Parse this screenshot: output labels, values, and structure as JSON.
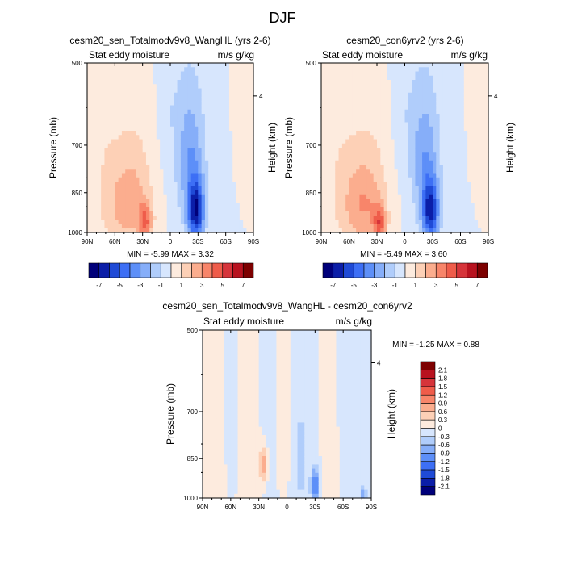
{
  "figure": {
    "title": "DJF"
  },
  "colors": {
    "diverging": [
      "#00007a",
      "#0b1ea8",
      "#1f4ad6",
      "#3d6ff5",
      "#5d8ff8",
      "#86aef9",
      "#b0cdfb",
      "#d7e6fd",
      "#fdebde",
      "#fdd0b6",
      "#fbad8e",
      "#f8856a",
      "#ef5c4a",
      "#d6343a",
      "#b8121f",
      "#7d0000"
    ]
  },
  "chart_data": [
    {
      "type": "heatmap",
      "title": "cesm20_sen_Totalmodv9v8_WangHL (yrs 2-6)",
      "left_subtitle": "Stat eddy moisture",
      "right_subtitle": "m/s g/kg",
      "ylabel": "Pressure (mb)",
      "y2label": "Height (km)",
      "y2_ticks": [
        "4"
      ],
      "x_ticks": [
        "90N",
        "60N",
        "30N",
        "0",
        "30S",
        "60S",
        "90S"
      ],
      "y_ticks": [
        "500",
        "700",
        "850",
        "1000"
      ],
      "stats": "MIN =  -5.99  MAX =   3.32",
      "colorbar_ticks": [
        "-7",
        "-5",
        "-3",
        "-1",
        "1",
        "3",
        "5",
        "7"
      ],
      "scale_min": -8,
      "scale_max": 8,
      "features": [
        {
          "lat": -28,
          "p": 920,
          "value": -5.99,
          "sx": 6,
          "sp": 80
        },
        {
          "lat": -22,
          "p": 780,
          "value": -2.5,
          "sx": 10,
          "sp": 140
        },
        {
          "lat": -15,
          "p": 620,
          "value": -0.9,
          "sx": 18,
          "sp": 160
        },
        {
          "lat": 45,
          "p": 900,
          "value": 2.6,
          "sx": 16,
          "sp": 110
        },
        {
          "lat": 27,
          "p": 960,
          "value": 3.32,
          "sx": 5,
          "sp": 50
        },
        {
          "lat": 40,
          "p": 700,
          "value": 0.8,
          "sx": 20,
          "sp": 150
        },
        {
          "lat": 75,
          "p": 700,
          "value": 0.6,
          "sx": 12,
          "sp": 300
        },
        {
          "lat": -55,
          "p": 700,
          "value": -0.4,
          "sx": 10,
          "sp": 250
        },
        {
          "lat": -72,
          "p": 600,
          "value": 0.4,
          "sx": 7,
          "sp": 150
        },
        {
          "lat": 5,
          "p": 560,
          "value": -0.5,
          "sx": 6,
          "sp": 120
        }
      ]
    },
    {
      "type": "heatmap",
      "title": "cesm20_con6yrv2 (yrs 2-6)",
      "left_subtitle": "Stat eddy moisture",
      "right_subtitle": "m/s g/kg",
      "ylabel": "Pressure (mb)",
      "y2label": "Height (km)",
      "y2_ticks": [
        "4"
      ],
      "x_ticks": [
        "90N",
        "60N",
        "30N",
        "0",
        "30S",
        "60S",
        "90S"
      ],
      "y_ticks": [
        "500",
        "700",
        "850",
        "1000"
      ],
      "stats": "MIN =  -5.49  MAX =   3.60",
      "colorbar_ticks": [
        "-7",
        "-5",
        "-3",
        "-1",
        "1",
        "3",
        "5",
        "7"
      ],
      "scale_min": -8,
      "scale_max": 8,
      "features": [
        {
          "lat": -28,
          "p": 920,
          "value": -5.49,
          "sx": 6,
          "sp": 80
        },
        {
          "lat": -22,
          "p": 780,
          "value": -2.4,
          "sx": 10,
          "sp": 140
        },
        {
          "lat": -15,
          "p": 620,
          "value": -0.9,
          "sx": 18,
          "sp": 160
        },
        {
          "lat": 45,
          "p": 900,
          "value": 2.8,
          "sx": 16,
          "sp": 110
        },
        {
          "lat": 27,
          "p": 960,
          "value": 3.6,
          "sx": 5,
          "sp": 50
        },
        {
          "lat": 40,
          "p": 700,
          "value": 0.8,
          "sx": 20,
          "sp": 150
        },
        {
          "lat": 75,
          "p": 700,
          "value": 0.6,
          "sx": 12,
          "sp": 300
        },
        {
          "lat": -55,
          "p": 700,
          "value": -0.4,
          "sx": 10,
          "sp": 250
        },
        {
          "lat": -72,
          "p": 600,
          "value": 0.4,
          "sx": 7,
          "sp": 150
        },
        {
          "lat": 5,
          "p": 560,
          "value": -0.5,
          "sx": 6,
          "sp": 120
        }
      ]
    },
    {
      "type": "heatmap",
      "title": "cesm20_sen_Totalmodv9v8_WangHL - cesm20_con6yrv2",
      "left_subtitle": "Stat eddy moisture",
      "right_subtitle": "m/s g/kg",
      "ylabel": "Pressure (mb)",
      "y2label": "Height (km)",
      "y2_ticks": [
        "4"
      ],
      "x_ticks": [
        "90N",
        "60N",
        "30N",
        "0",
        "30S",
        "60S",
        "90S"
      ],
      "y_ticks": [
        "500",
        "700",
        "850",
        "1000"
      ],
      "stats": "MIN =  -1.25  MAX =   0.88",
      "colorbar_ticks": [
        "2.1",
        "1.8",
        "1.5",
        "1.2",
        "0.9",
        "0.6",
        "0.3",
        "0",
        "-0.3",
        "-0.6",
        "-0.9",
        "-1.2",
        "-1.5",
        "-1.8",
        "-2.1"
      ],
      "scale_min": -2.4,
      "scale_max": 2.4,
      "features": [
        {
          "lat": 75,
          "p": 750,
          "value": 0.25,
          "sx": 6,
          "sp": 400
        },
        {
          "lat": 45,
          "p": 700,
          "value": 0.2,
          "sx": 6,
          "sp": 350
        },
        {
          "lat": 25,
          "p": 870,
          "value": 0.88,
          "sx": 3,
          "sp": 40
        },
        {
          "lat": 5,
          "p": 700,
          "value": 0.2,
          "sx": 5,
          "sp": 300
        },
        {
          "lat": -45,
          "p": 650,
          "value": 0.2,
          "sx": 5,
          "sp": 250
        },
        {
          "lat": 60,
          "p": 650,
          "value": -0.2,
          "sx": 5,
          "sp": 250
        },
        {
          "lat": 15,
          "p": 800,
          "value": -0.2,
          "sx": 5,
          "sp": 300
        },
        {
          "lat": -15,
          "p": 850,
          "value": -0.35,
          "sx": 7,
          "sp": 250
        },
        {
          "lat": -30,
          "p": 950,
          "value": -1.25,
          "sx": 3,
          "sp": 50
        },
        {
          "lat": -65,
          "p": 600,
          "value": -0.2,
          "sx": 6,
          "sp": 200
        },
        {
          "lat": -82,
          "p": 980,
          "value": -0.9,
          "sx": 2,
          "sp": 25
        }
      ]
    }
  ]
}
